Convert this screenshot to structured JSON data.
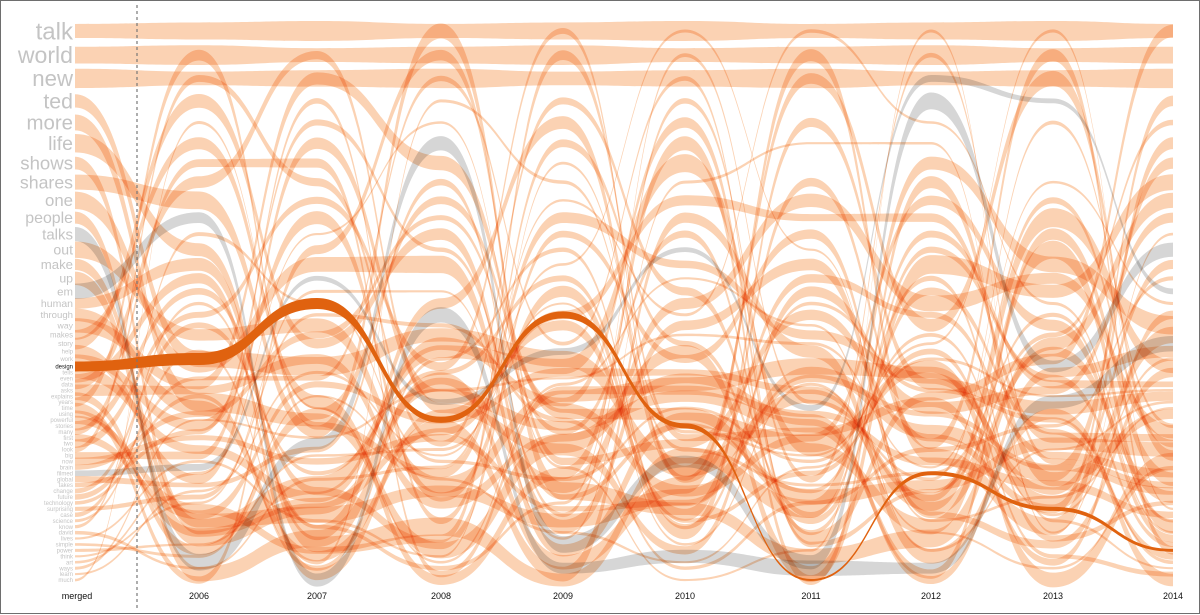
{
  "chart_data": {
    "type": "bump",
    "title": "",
    "xlabel": "",
    "ylabel": "",
    "highlighted_word": "design",
    "columns": [
      "merged",
      "2006",
      "2007",
      "2008",
      "2009",
      "2010",
      "2011",
      "2012",
      "2013",
      "2014"
    ],
    "words": [
      "talk",
      "world",
      "new",
      "ted",
      "more",
      "life",
      "shows",
      "shares",
      "one",
      "people",
      "talks",
      "out",
      "make",
      "up",
      "em",
      "human",
      "through",
      "way",
      "makes",
      "story",
      "help",
      "work",
      "design",
      "tells",
      "even",
      "data",
      "asks",
      "explains",
      "years",
      "time",
      "using",
      "powerful",
      "stories",
      "many",
      "first",
      "two",
      "look",
      "big",
      "now",
      "brain",
      "filmed",
      "global",
      "takes",
      "change",
      "future",
      "technology",
      "surprising",
      "case",
      "science",
      "know",
      "david",
      "lives",
      "simple",
      "power",
      "think",
      "art",
      "ways",
      "learn",
      "much"
    ],
    "greyed_words": [
      "talks",
      "em",
      "filmed"
    ],
    "series_highlight": {
      "name": "design",
      "rank_by_column": [
        22,
        21,
        15,
        31,
        16,
        32,
        58,
        40,
        46,
        53
      ]
    },
    "colors": {
      "band": "#f9c39a",
      "band_grey": "#c8c8c8",
      "highlight": "#e0620f",
      "label": "#c4c4c4",
      "label_active": "#111111",
      "border": "#6e6e6e",
      "divider": "#777777"
    }
  }
}
